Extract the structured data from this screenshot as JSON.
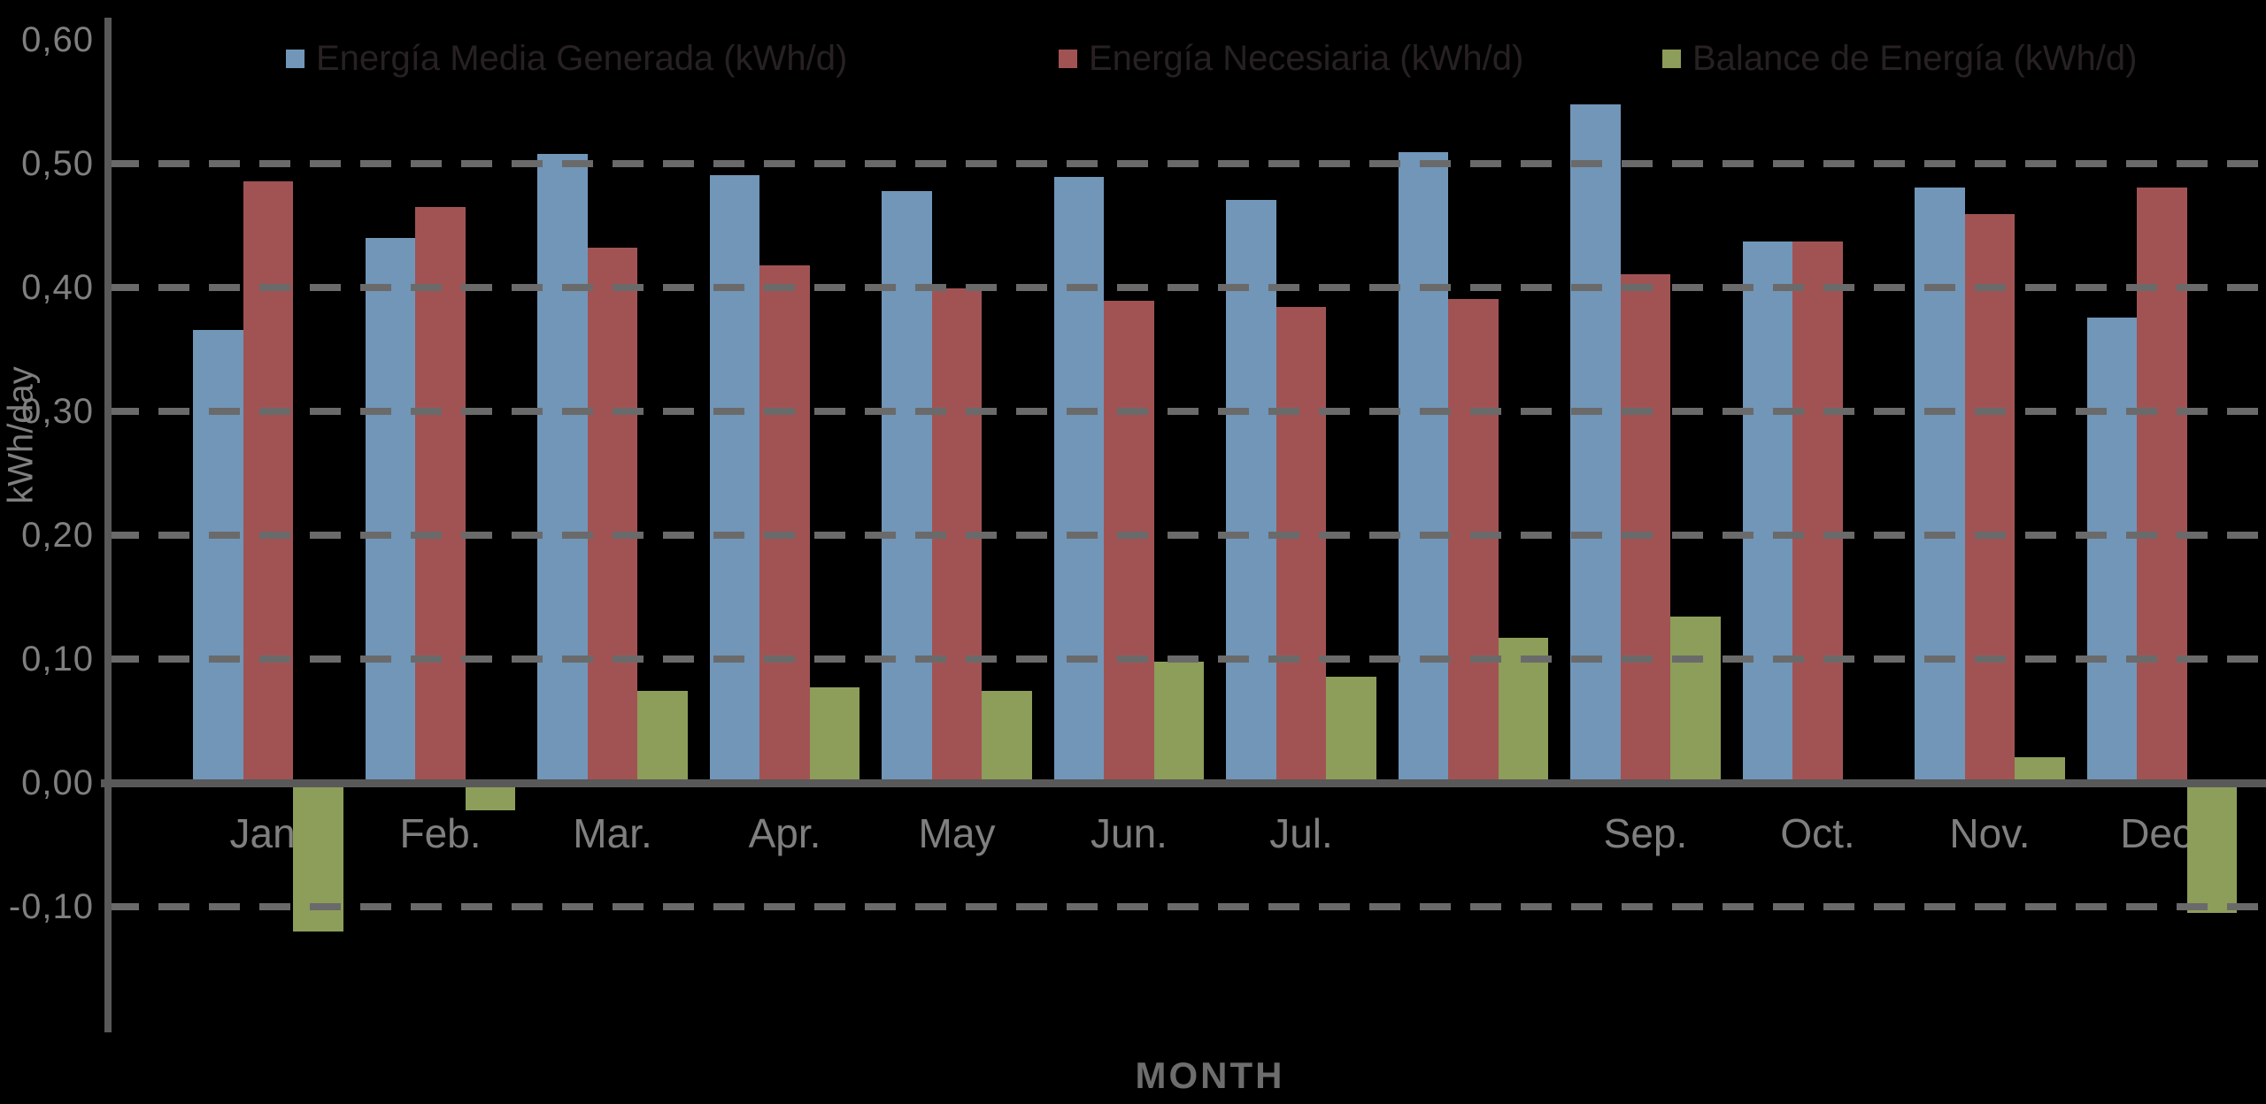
{
  "chart_data": {
    "type": "bar",
    "title": "",
    "xlabel": "MONTH",
    "ylabel": "kWh/day",
    "categories": [
      "Jan.",
      "Feb.",
      "Mar.",
      "Apr.",
      "May",
      "Jun.",
      "Jul.",
      "",
      "Sep.",
      "Oct.",
      "Nov.",
      "Dec."
    ],
    "series": [
      {
        "name": "Energía Media Generada (kWh/d)",
        "color": "#7196b8",
        "values": [
          0.366,
          0.44,
          0.508,
          0.491,
          0.478,
          0.489,
          0.471,
          0.509,
          0.548,
          0.437,
          0.481,
          0.376
        ]
      },
      {
        "name": "Energía Necesiaria (kWh/d)",
        "color": "#a15354",
        "values": [
          0.486,
          0.465,
          0.432,
          0.418,
          0.399,
          0.389,
          0.384,
          0.391,
          0.411,
          0.437,
          0.459,
          0.481
        ]
      },
      {
        "name": "Balance de Energía (kWh/d)",
        "color": "#8d9d5a",
        "values": [
          -0.12,
          -0.022,
          0.074,
          0.077,
          0.074,
          0.098,
          0.086,
          0.117,
          0.134,
          0.0,
          0.021,
          -0.105
        ]
      }
    ],
    "y_ticks": [
      {
        "label": "0,60",
        "value": 0.6
      },
      {
        "label": "0,50",
        "value": 0.5
      },
      {
        "label": "0,40",
        "value": 0.4
      },
      {
        "label": "0,30",
        "value": 0.3
      },
      {
        "label": "0,20",
        "value": 0.2
      },
      {
        "label": "0,10",
        "value": 0.1
      },
      {
        "label": "0,00",
        "value": 0.0
      },
      {
        "label": "-0,10",
        "value": -0.1
      }
    ],
    "gridline_values": [
      0.5,
      0.4,
      0.3,
      0.2,
      0.1,
      -0.1
    ],
    "ylim": [
      -0.2,
      0.62
    ],
    "grid": "dashed-horizontal",
    "legend_position": "top",
    "background_color": "#000000",
    "axis_color": "#595959",
    "text_color": "#7f7f7f"
  }
}
